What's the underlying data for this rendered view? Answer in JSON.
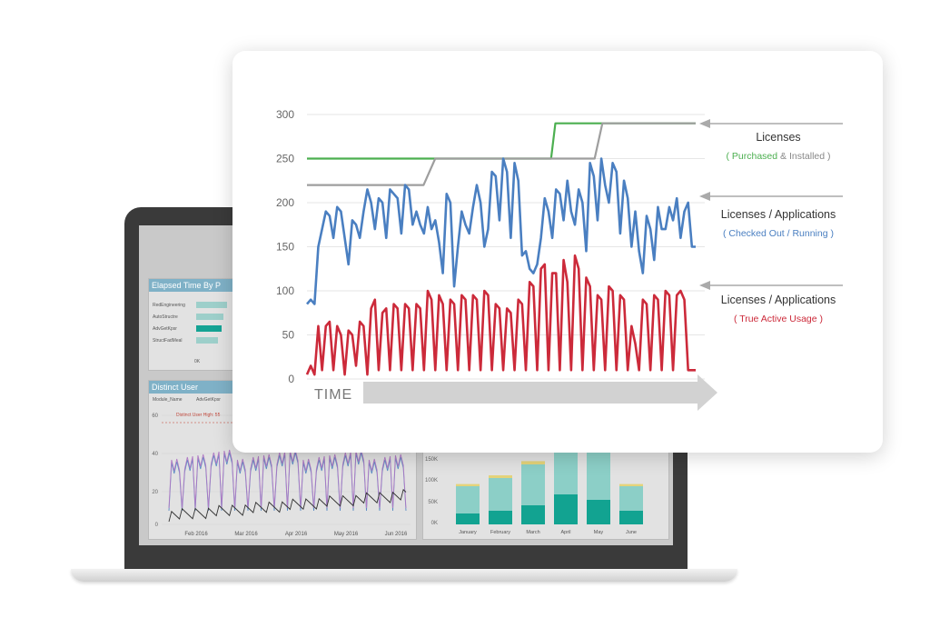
{
  "chart_data": {
    "type": "line",
    "title": "",
    "xlabel": "TIME",
    "ylabel": "",
    "ylim": [
      0,
      300
    ],
    "yticks": [
      0,
      50,
      100,
      150,
      200,
      250,
      300
    ],
    "grid": true,
    "series": [
      {
        "name": "Purchased",
        "color": "#4caf50",
        "x": [
          0,
          0.628,
          0.639,
          0.747,
          1
        ],
        "y": [
          250,
          250,
          290,
          290,
          290
        ]
      },
      {
        "name": "Installed",
        "color": "#9e9e9e",
        "x": [
          0,
          0.3,
          0.33,
          0.53,
          0.55,
          0.74,
          0.76,
          1
        ],
        "y": [
          220,
          220,
          250,
          250,
          250,
          250,
          290,
          290
        ]
      },
      {
        "name": "Checked Out / Running",
        "color": "#4a7fc1",
        "y": [
          85,
          90,
          85,
          150,
          170,
          190,
          185,
          160,
          195,
          190,
          160,
          130,
          180,
          175,
          160,
          190,
          215,
          200,
          170,
          205,
          200,
          160,
          215,
          210,
          205,
          165,
          220,
          215,
          175,
          190,
          175,
          165,
          195,
          170,
          180,
          155,
          120,
          210,
          200,
          105,
          150,
          190,
          175,
          165,
          195,
          220,
          200,
          150,
          170,
          235,
          230,
          180,
          250,
          235,
          160,
          245,
          225,
          140,
          145,
          125,
          120,
          130,
          160,
          205,
          190,
          160,
          215,
          210,
          180,
          225,
          190,
          175,
          215,
          200,
          145,
          245,
          230,
          180,
          250,
          220,
          200,
          245,
          235,
          165,
          225,
          205,
          150,
          190,
          145,
          120,
          185,
          170,
          135,
          195,
          170,
          170,
          195,
          180,
          205,
          160,
          190,
          200,
          150,
          150
        ]
      },
      {
        "name": "True Active Usage",
        "color": "#cc2a3a",
        "y": [
          5,
          15,
          5,
          60,
          10,
          60,
          65,
          10,
          60,
          50,
          5,
          55,
          50,
          15,
          65,
          60,
          5,
          80,
          90,
          10,
          75,
          80,
          10,
          85,
          80,
          10,
          85,
          80,
          10,
          85,
          80,
          10,
          100,
          90,
          10,
          95,
          85,
          10,
          90,
          85,
          10,
          95,
          90,
          10,
          95,
          90,
          10,
          100,
          95,
          10,
          85,
          80,
          10,
          80,
          75,
          10,
          90,
          85,
          10,
          110,
          105,
          10,
          125,
          130,
          10,
          120,
          120,
          10,
          135,
          110,
          10,
          140,
          125,
          10,
          115,
          105,
          10,
          95,
          90,
          10,
          105,
          100,
          10,
          95,
          90,
          10,
          60,
          40,
          10,
          90,
          85,
          10,
          95,
          90,
          10,
          100,
          95,
          10,
          95,
          100,
          90,
          10,
          10,
          10
        ]
      }
    ],
    "annotations": [
      {
        "title": "Licenses",
        "subtitle_parts": [
          {
            "text": "( Purchased",
            "color": "#4caf50"
          },
          {
            "text": " & ",
            "color": "#888888"
          },
          {
            "text": "Installed )",
            "color": "#888888"
          }
        ]
      },
      {
        "title": "Licenses / Applications",
        "subtitle_parts": [
          {
            "text": "( Checked Out / Running )",
            "color": "#4a7fc1"
          }
        ]
      },
      {
        "title": "Licenses / Applications",
        "subtitle_parts": [
          {
            "text": "( True Active Usage )",
            "color": "#cc2a3a"
          }
        ]
      }
    ]
  },
  "laptop": {
    "panel1_title": "Elapsed Time By P",
    "panel1_rows": [
      "RedEngineering",
      "AutoStructre",
      "AdvGetKpsr",
      "StructFadMeal"
    ],
    "panel1_axis": "0K",
    "panel2_title": "Distinct User",
    "panel2_legend_label": "Module_Name",
    "panel2_legend_item": "AdvGetKpsr",
    "panel2_note": "Distinct User High: 55",
    "panel2_xticks": [
      "Feb 2016",
      "Mar 2016",
      "Apr 2016",
      "May 2016",
      "Jun 2016"
    ],
    "panel2_yticks": [
      "60",
      "40",
      "20",
      "0"
    ],
    "panel3_yticks": [
      "150K",
      "100K",
      "50K",
      "0K"
    ],
    "panel3_months": [
      "January",
      "February",
      "March",
      "April",
      "May",
      "June"
    ],
    "panel3_values": [
      {
        "bottom": 20,
        "top": 50,
        "cap": 4
      },
      {
        "bottom": 25,
        "top": 60,
        "cap": 5
      },
      {
        "bottom": 35,
        "top": 75,
        "cap": 6
      },
      {
        "bottom": 55,
        "top": 110,
        "cap": 10
      },
      {
        "bottom": 45,
        "top": 95,
        "cap": 8
      },
      {
        "bottom": 25,
        "top": 45,
        "cap": 4
      }
    ]
  }
}
